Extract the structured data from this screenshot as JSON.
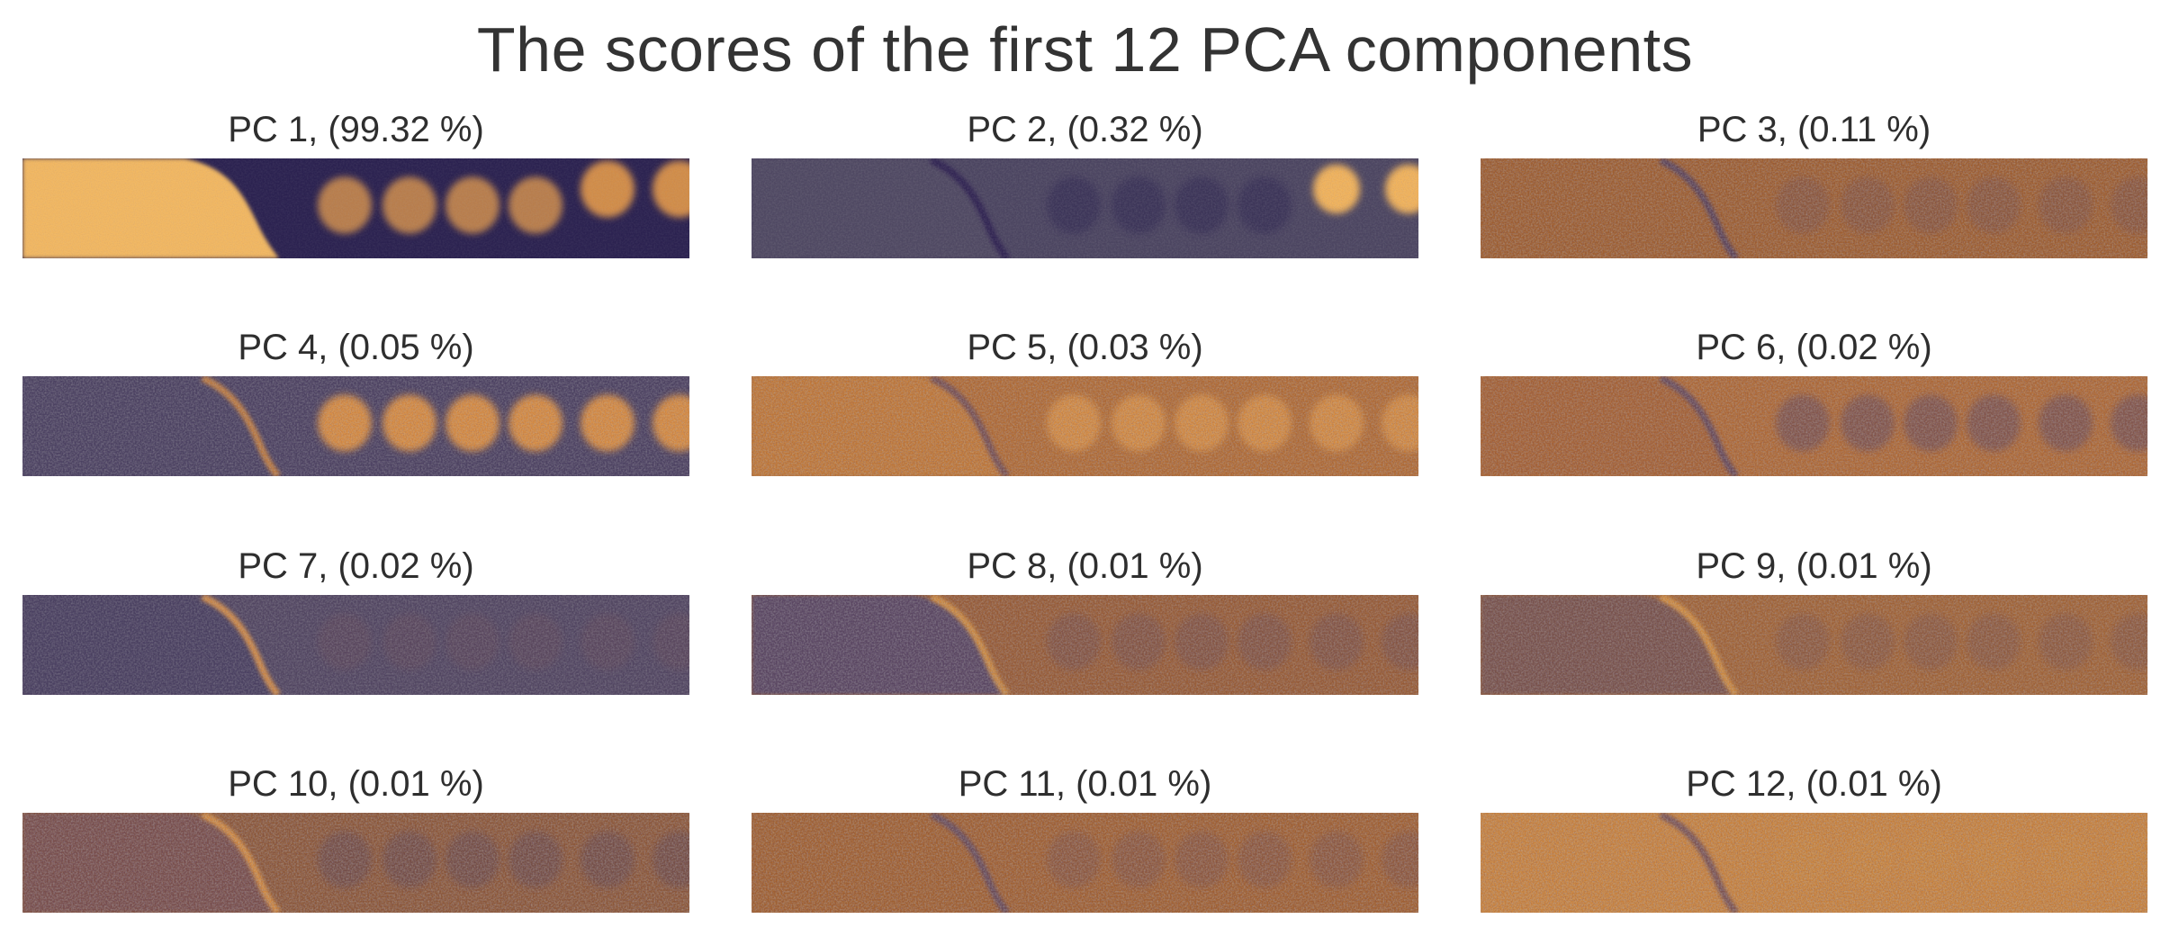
{
  "chart_data": {
    "type": "heatmap",
    "title": "The scores of the first 12 PCA components",
    "layout": "4 rows x 3 columns grid of score images",
    "colormap": [
      "#2a1f4f",
      "#5a4a62",
      "#a0622e",
      "#e69a3c",
      "#f8c766"
    ],
    "panels": [
      {
        "component": 1,
        "variance_percent": 99.32,
        "label": "PC 1, (99.32 %)"
      },
      {
        "component": 2,
        "variance_percent": 0.32,
        "label": "PC 2, (0.32 %)"
      },
      {
        "component": 3,
        "variance_percent": 0.11,
        "label": "PC 3, (0.11 %)"
      },
      {
        "component": 4,
        "variance_percent": 0.05,
        "label": "PC 4, (0.05 %)"
      },
      {
        "component": 5,
        "variance_percent": 0.03,
        "label": "PC 5, (0.03 %)"
      },
      {
        "component": 6,
        "variance_percent": 0.02,
        "label": "PC 6, (0.02 %)"
      },
      {
        "component": 7,
        "variance_percent": 0.02,
        "label": "PC 7, (0.02 %)"
      },
      {
        "component": 8,
        "variance_percent": 0.01,
        "label": "PC 8, (0.01 %)"
      },
      {
        "component": 9,
        "variance_percent": 0.01,
        "label": "PC 9, (0.01 %)"
      },
      {
        "component": 10,
        "variance_percent": 0.01,
        "label": "PC 10, (0.01 %)"
      },
      {
        "component": 11,
        "variance_percent": 0.01,
        "label": "PC 11, (0.01 %)"
      },
      {
        "component": 12,
        "variance_percent": 0.01,
        "label": "PC 12, (0.01 %)"
      }
    ]
  }
}
